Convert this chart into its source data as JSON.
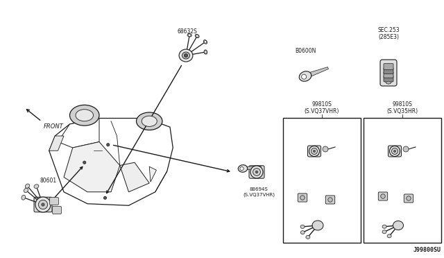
{
  "bg_color": "#ffffff",
  "diagram_number": "J99800SU",
  "lc": "#1a1a1a",
  "tc": "#1a1a1a",
  "fs": 5.5,
  "labels": {
    "part1": "68632S",
    "part2": "80601",
    "part3": "B0600N",
    "part4": "SEC.253\n(285E3)",
    "part5": "88694S\n(S.VQ37VHR)",
    "part6_left": "99810S\n(S.VQ37VHR)",
    "part6_right": "99810S\n(S.VQ35HR)",
    "front_arrow": "FRONT"
  }
}
